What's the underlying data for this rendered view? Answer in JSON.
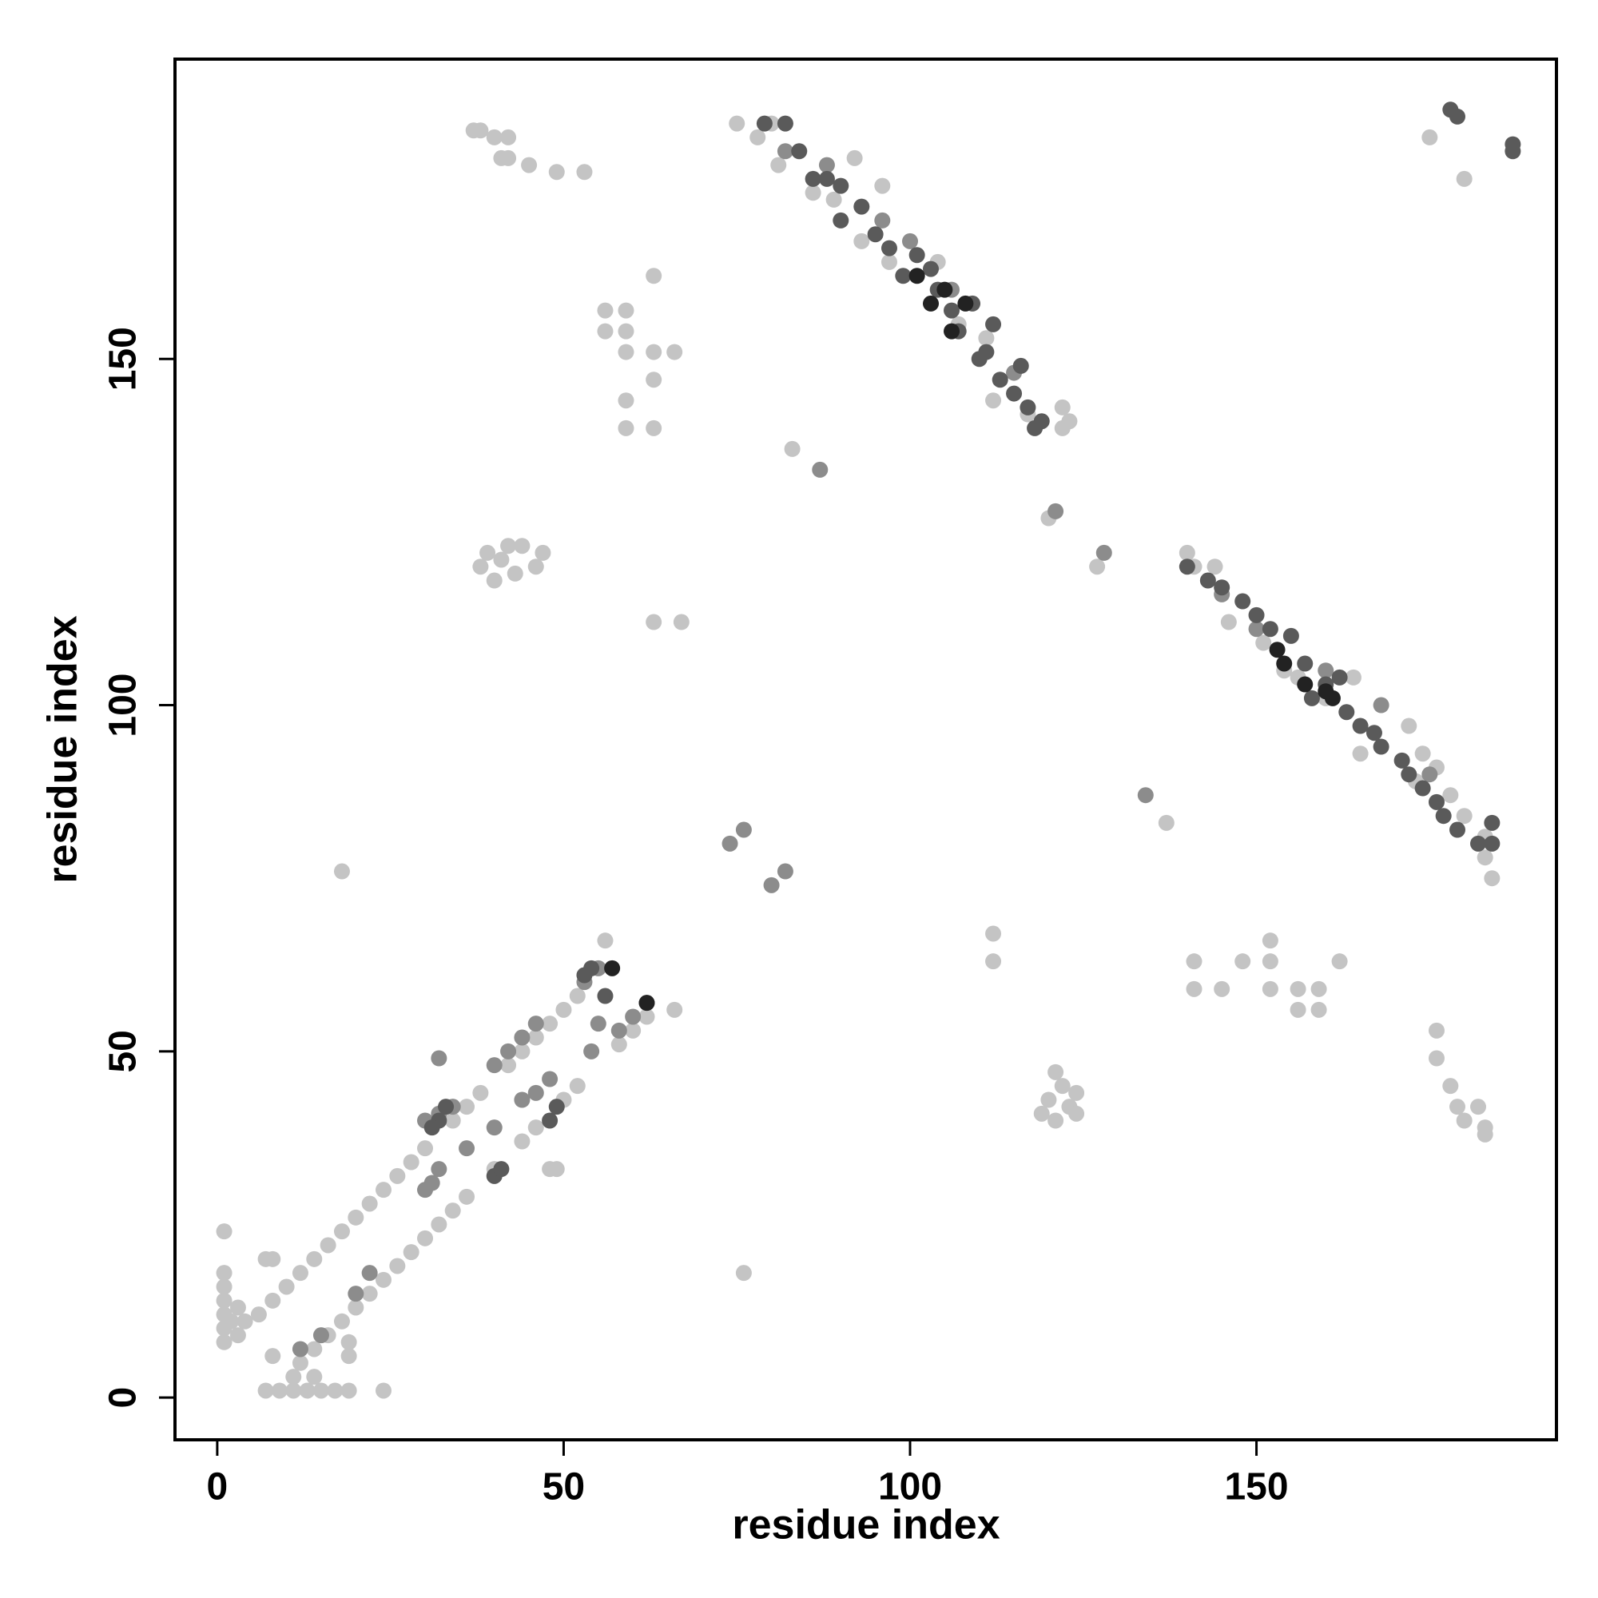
{
  "chart_data": {
    "type": "scatter",
    "xlabel": "residue index",
    "ylabel": "residue index",
    "xlim": [
      -6.1,
      193.3
    ],
    "ylim": [
      -6.1,
      193.3
    ],
    "xticks": [
      0,
      50,
      100,
      150
    ],
    "yticks": [
      0,
      50,
      100,
      150
    ],
    "series": [
      {
        "color": "#c4c4c4",
        "x": [
          1,
          1,
          1,
          1,
          1,
          1,
          1,
          2,
          3,
          3,
          4,
          7,
          9,
          11,
          13,
          15,
          17,
          19,
          24,
          11,
          14,
          6,
          8,
          10,
          12,
          14,
          16,
          18,
          20,
          22,
          24,
          26,
          28,
          30,
          34,
          36,
          38,
          42,
          44,
          46,
          48,
          50,
          52,
          7,
          8,
          12,
          14,
          16,
          18,
          20,
          22,
          24,
          26,
          28,
          30,
          32,
          34,
          36,
          40,
          44,
          46,
          50,
          52,
          58,
          60,
          62,
          8,
          19,
          19,
          48,
          49,
          18,
          76,
          56,
          66,
          38,
          39,
          40,
          41,
          42,
          43,
          44,
          46,
          47,
          37,
          38,
          40,
          42,
          41,
          42,
          45,
          49,
          53,
          56,
          59,
          56,
          59,
          59,
          63,
          66,
          63,
          59,
          59,
          63,
          63,
          63,
          67,
          83,
          112,
          112,
          141,
          141,
          145,
          148,
          152,
          152,
          152,
          156,
          156,
          159,
          159,
          162,
          119,
          120,
          121,
          122,
          123,
          124,
          121,
          124,
          176,
          176,
          178,
          179,
          180,
          182,
          183,
          183,
          175,
          180,
          75,
          78,
          80,
          81,
          86,
          89,
          92,
          96,
          93,
          97,
          104,
          107,
          111,
          112,
          117,
          122,
          123,
          122,
          140,
          141,
          144,
          146,
          151,
          154,
          156,
          160,
          164,
          165,
          172,
          174,
          176,
          173,
          178,
          180,
          183,
          183,
          184,
          137,
          120,
          127
        ],
        "values": [
          8,
          10,
          12,
          14,
          16,
          18,
          24,
          11,
          13,
          9,
          11,
          1,
          1,
          1,
          1,
          1,
          1,
          1,
          1,
          3,
          3,
          12,
          14,
          16,
          18,
          20,
          22,
          24,
          26,
          28,
          30,
          32,
          34,
          36,
          40,
          42,
          44,
          48,
          50,
          52,
          54,
          56,
          58,
          20,
          20,
          5,
          7,
          9,
          11,
          13,
          15,
          17,
          19,
          21,
          23,
          25,
          27,
          29,
          33,
          37,
          39,
          43,
          45,
          51,
          53,
          55,
          6,
          8,
          6,
          33,
          33,
          76,
          18,
          66,
          56,
          120,
          122,
          118,
          121,
          123,
          119,
          123,
          120,
          122,
          183,
          183,
          182,
          182,
          179,
          179,
          178,
          177,
          177,
          157,
          157,
          154,
          154,
          151,
          151,
          151,
          147,
          144,
          140,
          140,
          162,
          112,
          112,
          137,
          67,
          63,
          63,
          59,
          59,
          63,
          63,
          66,
          59,
          59,
          56,
          59,
          56,
          63,
          41,
          43,
          40,
          45,
          42,
          41,
          47,
          44,
          53,
          49,
          45,
          42,
          40,
          42,
          39,
          38,
          182,
          176,
          184,
          182,
          184,
          178,
          174,
          173,
          179,
          175,
          167,
          164,
          164,
          155,
          153,
          144,
          142,
          143,
          141,
          140,
          122,
          120,
          120,
          112,
          109,
          105,
          104,
          101,
          104,
          93,
          97,
          93,
          91,
          89,
          87,
          84,
          81,
          78,
          75,
          83,
          127,
          120
        ]
      },
      {
        "color": "#8c8c8c",
        "x": [
          30,
          31,
          32,
          36,
          40,
          44,
          46,
          48,
          54,
          55,
          58,
          60,
          62,
          30,
          32,
          34,
          40,
          42,
          44,
          46,
          53,
          55,
          20,
          22,
          12,
          15,
          74,
          76,
          80,
          82,
          87,
          134,
          121,
          128,
          32,
          82,
          88,
          96,
          100,
          106,
          115,
          145,
          150,
          160,
          168,
          175
        ],
        "values": [
          30,
          31,
          33,
          36,
          39,
          43,
          44,
          46,
          50,
          54,
          53,
          55,
          57,
          40,
          41,
          42,
          48,
          50,
          52,
          54,
          60,
          62,
          15,
          18,
          7,
          9,
          80,
          82,
          74,
          76,
          134,
          87,
          128,
          122,
          49,
          180,
          178,
          170,
          167,
          160,
          148,
          116,
          111,
          105,
          100,
          90
        ]
      },
      {
        "color": "#5a5a5a",
        "x": [
          79,
          82,
          84,
          86,
          88,
          90,
          90,
          93,
          95,
          97,
          99,
          101,
          103,
          104,
          106,
          107,
          109,
          111,
          112,
          113,
          115,
          117,
          118,
          119,
          116,
          110,
          140,
          143,
          145,
          148,
          150,
          152,
          155,
          157,
          158,
          160,
          162,
          163,
          165,
          167,
          168,
          171,
          172,
          174,
          176,
          177,
          179,
          182,
          184,
          184,
          178,
          179,
          187,
          187,
          32,
          33,
          31,
          40,
          41,
          48,
          49,
          53,
          54,
          56
        ],
        "values": [
          184,
          184,
          180,
          176,
          176,
          175,
          170,
          172,
          168,
          166,
          162,
          165,
          163,
          160,
          157,
          154,
          158,
          151,
          155,
          147,
          145,
          143,
          140,
          141,
          149,
          150,
          120,
          118,
          117,
          115,
          113,
          111,
          110,
          106,
          101,
          103,
          104,
          99,
          97,
          96,
          94,
          92,
          90,
          88,
          86,
          84,
          82,
          80,
          83,
          80,
          186,
          185,
          180,
          181,
          40,
          42,
          39,
          32,
          33,
          40,
          42,
          61,
          62,
          58
        ]
      },
      {
        "color": "#222222",
        "x": [
          57,
          62,
          101,
          103,
          106,
          108,
          105,
          154,
          157,
          161,
          153,
          160
        ],
        "values": [
          62,
          57,
          162,
          158,
          154,
          158,
          160,
          106,
          103,
          101,
          108,
          102
        ]
      }
    ]
  }
}
